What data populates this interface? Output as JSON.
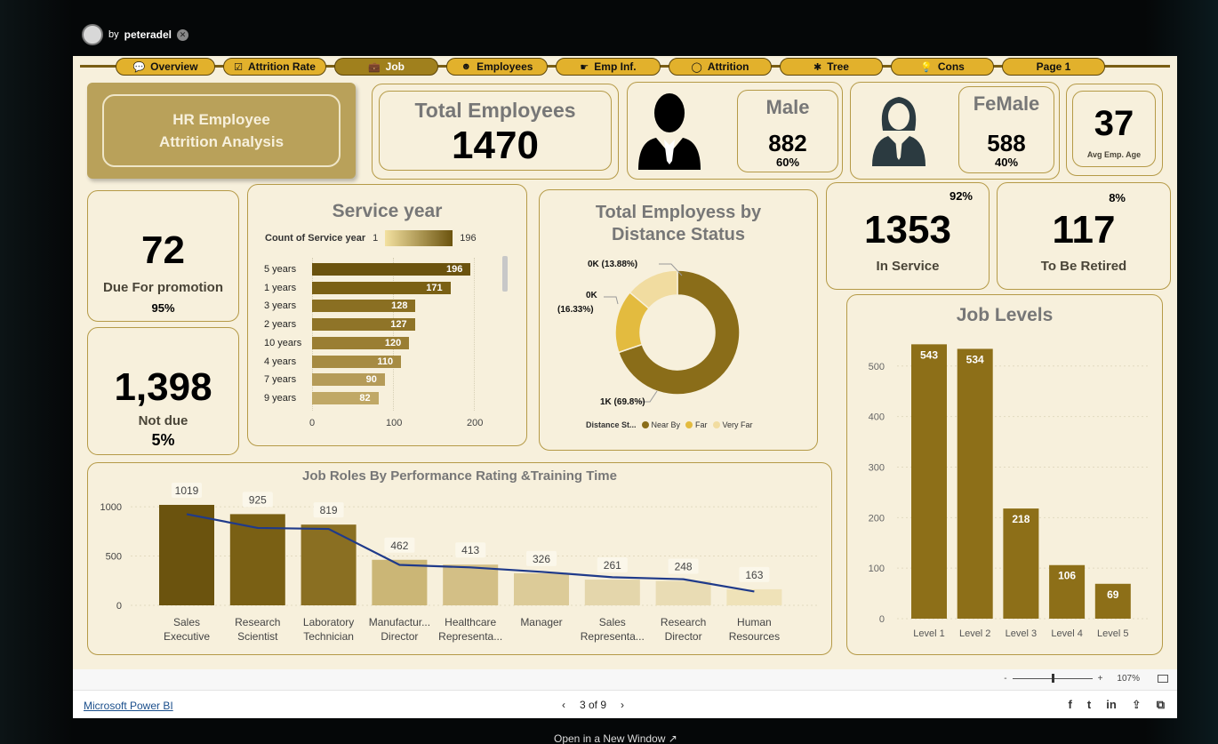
{
  "author": {
    "prefix": "by",
    "name": "peteradel"
  },
  "nav": [
    {
      "icon": "💬",
      "label": "Overview",
      "active": false
    },
    {
      "icon": "☑",
      "label": "Attrition Rate",
      "active": false
    },
    {
      "icon": "💼",
      "label": "Job",
      "active": true
    },
    {
      "icon": "☻",
      "label": "Employees",
      "active": false
    },
    {
      "icon": "☛",
      "label": "Emp Inf.",
      "active": false
    },
    {
      "icon": "◯",
      "label": "Attrition",
      "active": false
    },
    {
      "icon": "✱",
      "label": "Tree",
      "active": false
    },
    {
      "icon": "💡",
      "label": "Cons",
      "active": false
    },
    {
      "icon": "",
      "label": "Page 1",
      "active": false
    }
  ],
  "title": {
    "line1": "HR Employee",
    "line2": "Attrition Analysis"
  },
  "total": {
    "label": "Total Employees",
    "value": "1470"
  },
  "male": {
    "label": "Male",
    "value": "882",
    "pct": "60%"
  },
  "female": {
    "label": "FeMale",
    "value": "588",
    "pct": "40%"
  },
  "age": {
    "value": "37",
    "label": "Avg Emp. Age"
  },
  "promotion": {
    "value": "72",
    "label": "Due For promotion",
    "pct": "95%"
  },
  "notdue": {
    "value": "1,398",
    "label": "Not due",
    "pct": "5%"
  },
  "service": {
    "title": "Service year",
    "legend_label": "Count of Service year",
    "legend_min": "1",
    "legend_max": "196",
    "axis_ticks": [
      "0",
      "100",
      "200"
    ]
  },
  "distance": {
    "title_line1": "Total Employess by",
    "title_line2": "Distance Status",
    "legend_title": "Distance St...",
    "label_veryfar": "0K (13.88%)",
    "label_far_1": "0K",
    "label_far_2": "(16.33%)",
    "label_near": "1K (69.8%)"
  },
  "inservice": {
    "pct": "92%",
    "value": "1353",
    "label": "In Service"
  },
  "retired": {
    "pct": "8%",
    "value": "117",
    "label": "To Be Retired"
  },
  "joblevels": {
    "title": "Job Levels"
  },
  "jobroles": {
    "title": "Job Roles By Performance Rating &Training Time"
  },
  "chart_data": [
    {
      "type": "bar",
      "title": "Service year",
      "orientation": "horizontal",
      "categories": [
        "5 years",
        "1 years",
        "3 years",
        "2 years",
        "10 years",
        "4 years",
        "7 years",
        "9 years"
      ],
      "values": [
        196,
        171,
        128,
        127,
        120,
        110,
        90,
        82
      ],
      "xlim": [
        0,
        200
      ],
      "colors": [
        "#6b530e",
        "#7a6014",
        "#8a6f22",
        "#8f7428",
        "#9a7e33",
        "#a68b42",
        "#b59b58",
        "#c0a866"
      ]
    },
    {
      "type": "pie",
      "title": "Total Employess by Distance Status",
      "donut": true,
      "categories": [
        "Near By",
        "Far",
        "Very Far"
      ],
      "values": [
        69.8,
        16.33,
        13.88
      ],
      "colors": [
        "#8a6d19",
        "#e3bb3f",
        "#f1dca0"
      ]
    },
    {
      "type": "bar",
      "title": "Job Levels",
      "categories": [
        "Level 1",
        "Level 2",
        "Level 3",
        "Level 4",
        "Level 5"
      ],
      "values": [
        543,
        534,
        218,
        106,
        69
      ],
      "ylim": [
        0,
        570
      ],
      "yticks": [
        0,
        100,
        200,
        300,
        400,
        500
      ],
      "color": "#8d6f18"
    },
    {
      "type": "bar",
      "title": "Job Roles By Performance Rating &Training Time",
      "categories": [
        [
          "Sales",
          "Executive"
        ],
        [
          "Research",
          "Scientist"
        ],
        [
          "Laboratory",
          "Technician"
        ],
        [
          "Manufactur...",
          "Director"
        ],
        [
          "Healthcare",
          "Representa..."
        ],
        [
          "Manager",
          ""
        ],
        [
          "Sales",
          "Representa..."
        ],
        [
          "Research",
          "Director"
        ],
        [
          "Human",
          "Resources"
        ]
      ],
      "values": [
        1019,
        925,
        819,
        462,
        413,
        326,
        261,
        248,
        163
      ],
      "line_series": [
        925,
        785,
        775,
        410,
        385,
        340,
        285,
        265,
        140
      ],
      "ylim": [
        0,
        1100
      ],
      "yticks": [
        0,
        500,
        1000
      ],
      "colors": [
        "#6b530e",
        "#7a6014",
        "#8a6f22",
        "#cbb676",
        "#d3bf86",
        "#dccb98",
        "#e4d6ab",
        "#e9dcb4",
        "#efe2b8"
      ],
      "line_color": "#1f3a8a"
    }
  ],
  "footer": {
    "link": "Microsoft Power BI",
    "page": "3 of 9",
    "zoom_minus": "-",
    "zoom_plus": "+",
    "zoom": "107%",
    "new_window": "Open in a New Window ↗"
  },
  "socials": [
    "f",
    "t",
    "in",
    "⇪",
    "⧉"
  ]
}
